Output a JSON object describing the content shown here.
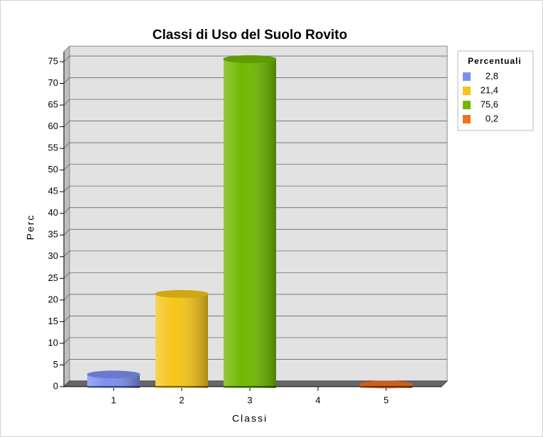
{
  "chart_data": {
    "type": "bar",
    "title": "Classi di Uso del Suolo Rovito",
    "x_label": "Classi",
    "y_label": "Perc",
    "categories": [
      "1",
      "2",
      "3",
      "4",
      "5"
    ],
    "values": [
      2.8,
      21.4,
      75.6,
      null,
      0.2
    ],
    "value_labels": [
      "2,8",
      "21,4",
      "75,6",
      null,
      "0,2"
    ],
    "colors": [
      "#7b8ff0",
      "#f5c518",
      "#6fb800",
      null,
      "#f07020"
    ],
    "legend_title": "Percentuali",
    "ylim": [
      0,
      75
    ],
    "yticks": [
      0,
      5,
      10,
      15,
      20,
      25,
      30,
      35,
      40,
      45,
      50,
      55,
      60,
      65,
      70,
      75
    ],
    "grid": true,
    "legend": "right"
  }
}
